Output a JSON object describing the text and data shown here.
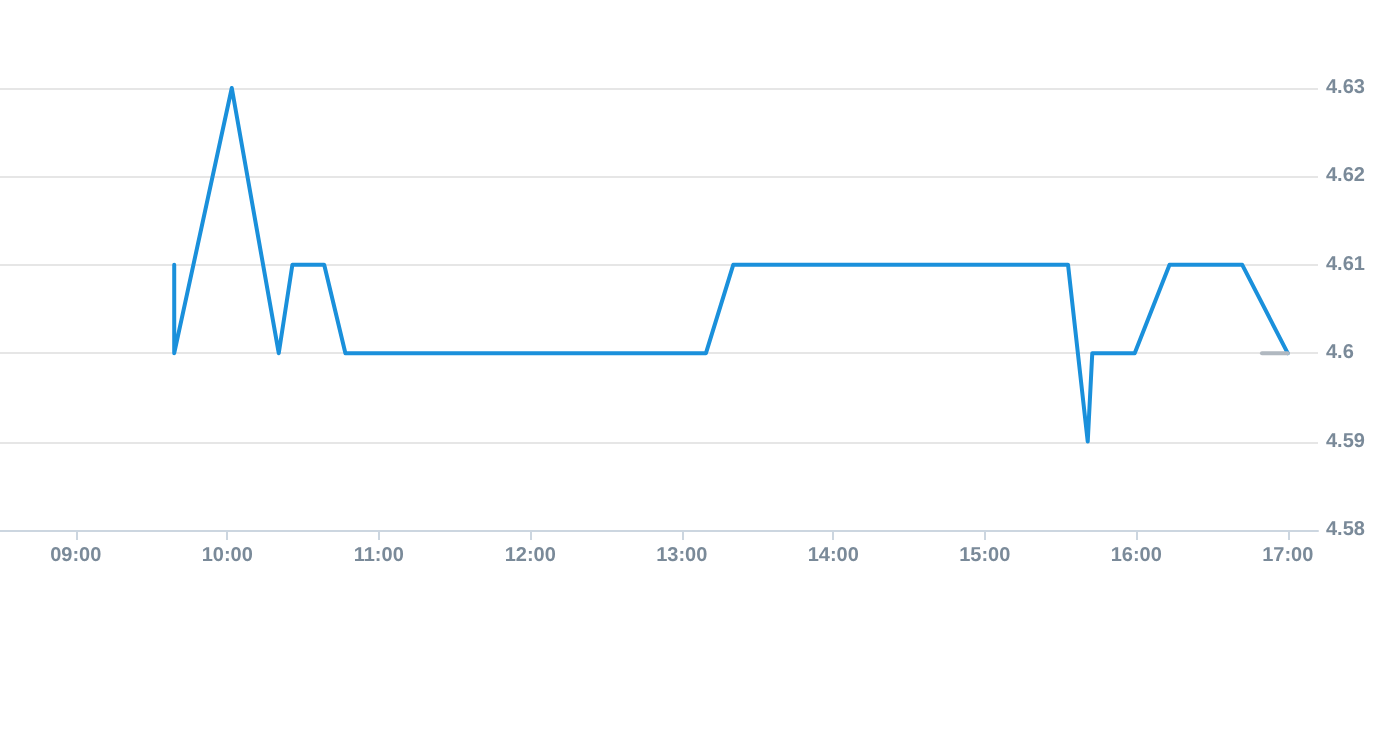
{
  "chart_data": {
    "type": "line",
    "series": [
      {
        "color": "#1a90db",
        "x": [
          9.65,
          9.65,
          10.03,
          10.34,
          10.43,
          10.64,
          10.78,
          13.16,
          13.34,
          15.55,
          15.68,
          15.71,
          15.99,
          16.22,
          16.7,
          17.0
        ],
        "values": [
          4.61,
          4.6,
          4.63,
          4.6,
          4.61,
          4.61,
          4.6,
          4.6,
          4.61,
          4.61,
          4.59,
          4.6,
          4.6,
          4.61,
          4.61,
          4.6
        ]
      },
      {
        "color": "#b0b8c0",
        "x": [
          16.83,
          17.0
        ],
        "values": [
          4.6,
          4.6
        ]
      }
    ],
    "xlim": [
      8.5,
      17.2
    ],
    "xticks": [
      {
        "value": 9,
        "label": "09:00"
      },
      {
        "value": 10,
        "label": "10:00"
      },
      {
        "value": 11,
        "label": "11:00"
      },
      {
        "value": 12,
        "label": "12:00"
      },
      {
        "value": 13,
        "label": "13:00"
      },
      {
        "value": 14,
        "label": "14:00"
      },
      {
        "value": 15,
        "label": "15:00"
      },
      {
        "value": 16,
        "label": "16:00"
      },
      {
        "value": 17,
        "label": "17:00"
      }
    ],
    "ylim": [
      4.58,
      4.63
    ],
    "yticks": [
      4.58,
      4.59,
      4.6,
      4.61,
      4.62,
      4.63
    ],
    "grid": "y",
    "marker": "none",
    "line_style": "solid"
  }
}
